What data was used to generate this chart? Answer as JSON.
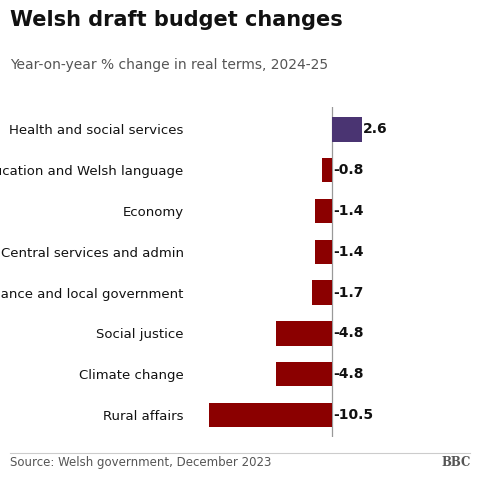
{
  "title": "Welsh draft budget changes",
  "subtitle": "Year-on-year % change in real terms, 2024-25",
  "source": "Source: Welsh government, December 2023",
  "categories": [
    "Health and social services",
    "Education and Welsh language",
    "Economy",
    "Central services and admin",
    "Finance and local government",
    "Social justice",
    "Climate change",
    "Rural affairs"
  ],
  "values": [
    2.6,
    -0.8,
    -1.4,
    -1.4,
    -1.7,
    -4.8,
    -4.8,
    -10.5
  ],
  "bar_colors": [
    "#4a3472",
    "#8b0000",
    "#8b0000",
    "#8b0000",
    "#8b0000",
    "#8b0000",
    "#8b0000",
    "#8b0000"
  ],
  "xlim": [
    -12,
    4.5
  ],
  "title_fontsize": 15,
  "subtitle_fontsize": 10,
  "label_fontsize": 9.5,
  "value_fontsize": 10,
  "source_fontsize": 8.5,
  "background_color": "#ffffff",
  "bar_height": 0.6,
  "zero_line_color": "#999999",
  "text_color": "#111111",
  "source_color": "#555555"
}
